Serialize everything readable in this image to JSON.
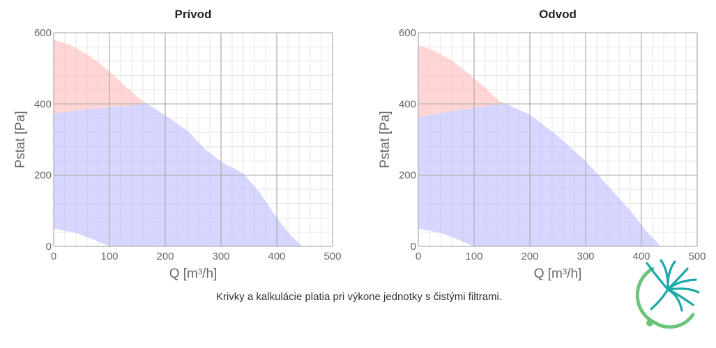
{
  "colors": {
    "area_red": "#ffb3b3",
    "area_blue": "#b4b4ff",
    "grid_major": "#b0b0b0",
    "grid_minor": "#e6e6e6",
    "logo_teal": "#1aa8a8",
    "logo_green": "#6cc47a"
  },
  "logo": {
    "name": "fan-swirl-logo"
  },
  "footnote": "Krivky a kalkulácie platia pri výkone jednotky s čistými filtrami.",
  "chart_data": [
    {
      "type": "area",
      "title": "Prívod",
      "xlabel": "Q [m³/h]",
      "ylabel": "Pstat [Pa]",
      "xlim": [
        0,
        500
      ],
      "ylim": [
        0,
        600
      ],
      "xticks": [
        0,
        100,
        200,
        300,
        400,
        500
      ],
      "yticks": [
        0,
        200,
        400,
        600
      ],
      "grid": true,
      "series": [
        {
          "role": "red-upper-envelope",
          "color": "#ffb3b3",
          "upper": [
            [
              0,
              580
            ],
            [
              30,
              565
            ],
            [
              60,
              540
            ],
            [
              90,
              505
            ],
            [
              120,
              462
            ],
            [
              150,
              420
            ],
            [
              168,
              400
            ]
          ],
          "lower": [
            [
              168,
              400
            ],
            [
              120,
              393
            ],
            [
              60,
              385
            ],
            [
              0,
              373
            ]
          ]
        },
        {
          "role": "blue-operating-area",
          "color": "#b4b4ff",
          "upper": [
            [
              0,
              373
            ],
            [
              60,
              385
            ],
            [
              120,
              393
            ],
            [
              168,
              400
            ],
            [
              200,
              368
            ],
            [
              240,
              325
            ],
            [
              270,
              275
            ],
            [
              300,
              238
            ],
            [
              340,
              205
            ],
            [
              370,
              150
            ],
            [
              400,
              80
            ],
            [
              420,
              40
            ],
            [
              445,
              0
            ]
          ],
          "lower": [
            [
              100,
              0
            ],
            [
              70,
              20
            ],
            [
              40,
              38
            ],
            [
              0,
              50
            ]
          ]
        }
      ]
    },
    {
      "type": "area",
      "title": "Odvod",
      "xlabel": "Q [m³/h]",
      "ylabel": "Pstat [Pa]",
      "xlim": [
        0,
        500
      ],
      "ylim": [
        0,
        600
      ],
      "xticks": [
        0,
        100,
        200,
        300,
        400,
        500
      ],
      "yticks": [
        0,
        200,
        400,
        600
      ],
      "grid": true,
      "series": [
        {
          "role": "red-upper-envelope",
          "color": "#ffb3b3",
          "upper": [
            [
              0,
              565
            ],
            [
              30,
              548
            ],
            [
              60,
              522
            ],
            [
              90,
              485
            ],
            [
              120,
              445
            ],
            [
              145,
              408
            ],
            [
              157,
              400
            ]
          ],
          "lower": [
            [
              157,
              400
            ],
            [
              120,
              393
            ],
            [
              60,
              380
            ],
            [
              0,
              363
            ]
          ]
        },
        {
          "role": "blue-operating-area",
          "color": "#b4b4ff",
          "upper": [
            [
              0,
              363
            ],
            [
              60,
              380
            ],
            [
              120,
              393
            ],
            [
              157,
              400
            ],
            [
              200,
              370
            ],
            [
              250,
              310
            ],
            [
              300,
              240
            ],
            [
              340,
              170
            ],
            [
              380,
              100
            ],
            [
              410,
              40
            ],
            [
              435,
              0
            ]
          ],
          "lower": [
            [
              100,
              0
            ],
            [
              70,
              20
            ],
            [
              40,
              38
            ],
            [
              0,
              50
            ]
          ]
        }
      ]
    }
  ]
}
